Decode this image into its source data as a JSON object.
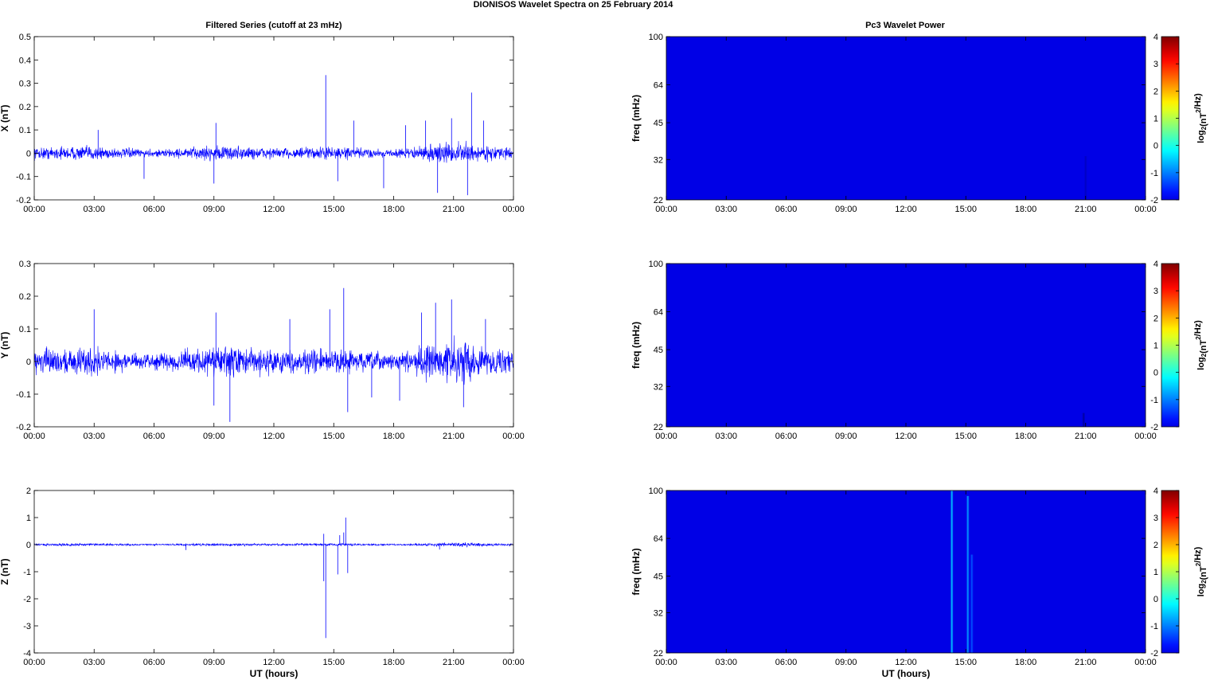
{
  "figure": {
    "title": "DIONISOS Wavelet Spectra on 25 February  2014",
    "left_column_title": "Filtered Series (cutoff at 23 mHz)",
    "right_column_title": "Pc3 Wavelet Power"
  },
  "colors": {
    "series_line": "#0000ff",
    "spectrum_background": "#00008f",
    "axes": "#000000"
  },
  "chart_data": [
    {
      "type": "line",
      "title": "Filtered Series (cutoff at 23 mHz)",
      "xlabel": "",
      "ylabel": "X (nT)",
      "x_ticks": [
        "00:00",
        "03:00",
        "06:00",
        "09:00",
        "12:00",
        "15:00",
        "18:00",
        "21:00",
        "00:00"
      ],
      "xlim_hours": [
        0,
        24
      ],
      "ylim": [
        -0.2,
        0.5
      ],
      "y_ticks": [
        -0.2,
        -0.1,
        0,
        0.1,
        0.2,
        0.3,
        0.4,
        0.5
      ],
      "noise_band_nT": 0.035,
      "spikes": [
        {
          "x_hours": 14.6,
          "y": 0.335
        },
        {
          "x_hours": 21.9,
          "y": 0.26
        },
        {
          "x_hours": 21.7,
          "y": -0.18
        },
        {
          "x_hours": 20.2,
          "y": -0.17
        },
        {
          "x_hours": 19.6,
          "y": 0.14
        },
        {
          "x_hours": 17.5,
          "y": -0.15
        },
        {
          "x_hours": 15.2,
          "y": -0.12
        },
        {
          "x_hours": 9.0,
          "y": -0.13
        },
        {
          "x_hours": 9.1,
          "y": 0.13
        },
        {
          "x_hours": 16.0,
          "y": 0.14
        },
        {
          "x_hours": 20.9,
          "y": 0.15
        },
        {
          "x_hours": 22.5,
          "y": 0.14
        },
        {
          "x_hours": 3.2,
          "y": 0.1
        },
        {
          "x_hours": 5.5,
          "y": -0.11
        },
        {
          "x_hours": 18.6,
          "y": 0.12
        }
      ]
    },
    {
      "type": "line",
      "title": "",
      "xlabel": "",
      "ylabel": "Y (nT)",
      "x_ticks": [
        "00:00",
        "03:00",
        "06:00",
        "09:00",
        "12:00",
        "15:00",
        "18:00",
        "21:00",
        "00:00"
      ],
      "xlim_hours": [
        0,
        24
      ],
      "ylim": [
        -0.2,
        0.3
      ],
      "y_ticks": [
        -0.2,
        -0.1,
        0,
        0.1,
        0.2,
        0.3
      ],
      "noise_band_nT": 0.05,
      "spikes": [
        {
          "x_hours": 15.5,
          "y": 0.225
        },
        {
          "x_hours": 9.8,
          "y": -0.185
        },
        {
          "x_hours": 9.0,
          "y": -0.135
        },
        {
          "x_hours": 15.7,
          "y": -0.155
        },
        {
          "x_hours": 20.9,
          "y": 0.19
        },
        {
          "x_hours": 20.1,
          "y": 0.18
        },
        {
          "x_hours": 21.5,
          "y": -0.14
        },
        {
          "x_hours": 3.0,
          "y": 0.16
        },
        {
          "x_hours": 14.8,
          "y": 0.16
        },
        {
          "x_hours": 16.9,
          "y": -0.11
        },
        {
          "x_hours": 22.6,
          "y": 0.13
        },
        {
          "x_hours": 19.4,
          "y": 0.15
        },
        {
          "x_hours": 9.1,
          "y": 0.15
        },
        {
          "x_hours": 12.8,
          "y": 0.13
        },
        {
          "x_hours": 18.3,
          "y": -0.12
        }
      ]
    },
    {
      "type": "line",
      "title": "",
      "xlabel": "UT (hours)",
      "ylabel": "Z (nT)",
      "x_ticks": [
        "00:00",
        "03:00",
        "06:00",
        "09:00",
        "12:00",
        "15:00",
        "18:00",
        "21:00",
        "00:00"
      ],
      "xlim_hours": [
        0,
        24
      ],
      "ylim": [
        -4,
        2
      ],
      "y_ticks": [
        -4,
        -3,
        -2,
        -1,
        0,
        1,
        2
      ],
      "noise_band_nT": 0.06,
      "spikes": [
        {
          "x_hours": 14.6,
          "y": -3.45
        },
        {
          "x_hours": 14.5,
          "y": -1.35
        },
        {
          "x_hours": 15.6,
          "y": 1.0
        },
        {
          "x_hours": 15.5,
          "y": 0.45
        },
        {
          "x_hours": 15.2,
          "y": -1.1
        },
        {
          "x_hours": 15.3,
          "y": 0.35
        },
        {
          "x_hours": 15.7,
          "y": -1.05
        },
        {
          "x_hours": 14.5,
          "y": 0.4
        },
        {
          "x_hours": 20.3,
          "y": -0.18
        },
        {
          "x_hours": 7.6,
          "y": -0.2
        }
      ]
    },
    {
      "type": "heatmap",
      "title": "Pc3 Wavelet Power",
      "xlabel": "",
      "ylabel": "freq (mHz)",
      "x_ticks": [
        "00:00",
        "03:00",
        "06:00",
        "09:00",
        "12:00",
        "15:00",
        "18:00",
        "21:00",
        "00:00"
      ],
      "xlim_hours": [
        0,
        24
      ],
      "y_ticks": [
        22,
        32,
        45,
        64,
        100
      ],
      "ylim_mHz": [
        22,
        100
      ],
      "y_scale": "log",
      "colorbar_label": "log2(nT2/Hz)",
      "colorbar_ticks": [
        -2,
        -1,
        0,
        1,
        2,
        3,
        4
      ],
      "colorbar_range": [
        -2,
        4
      ],
      "background_value": -2,
      "features": [
        {
          "x_hours": 21.0,
          "f_low_mHz": 22,
          "f_high_mHz": 33,
          "value": -1.6
        }
      ]
    },
    {
      "type": "heatmap",
      "title": "",
      "xlabel": "",
      "ylabel": "freq (mHz)",
      "x_ticks": [
        "00:00",
        "03:00",
        "06:00",
        "09:00",
        "12:00",
        "15:00",
        "18:00",
        "21:00",
        "00:00"
      ],
      "xlim_hours": [
        0,
        24
      ],
      "y_ticks": [
        22,
        32,
        45,
        64,
        100
      ],
      "ylim_mHz": [
        22,
        100
      ],
      "y_scale": "log",
      "colorbar_label": "log2(nT2/Hz)",
      "colorbar_ticks": [
        -2,
        -1,
        0,
        1,
        2,
        3,
        4
      ],
      "colorbar_range": [
        -2,
        4
      ],
      "background_value": -2,
      "features": [
        {
          "x_hours": 20.9,
          "f_low_mHz": 22,
          "f_high_mHz": 25,
          "value": -1.8
        }
      ]
    },
    {
      "type": "heatmap",
      "title": "",
      "xlabel": "UT (hours)",
      "ylabel": "freq (mHz)",
      "x_ticks": [
        "00:00",
        "03:00",
        "06:00",
        "09:00",
        "12:00",
        "15:00",
        "18:00",
        "21:00",
        "00:00"
      ],
      "xlim_hours": [
        0,
        24
      ],
      "y_ticks": [
        22,
        32,
        45,
        64,
        100
      ],
      "ylim_mHz": [
        22,
        100
      ],
      "y_scale": "log",
      "colorbar_label": "log2(nT2/Hz)",
      "colorbar_ticks": [
        -2,
        -1,
        0,
        1,
        2,
        3,
        4
      ],
      "colorbar_range": [
        -2,
        4
      ],
      "background_value": -2,
      "features": [
        {
          "x_hours": 14.3,
          "f_low_mHz": 22,
          "f_high_mHz": 100,
          "value": -0.2
        },
        {
          "x_hours": 15.1,
          "f_low_mHz": 22,
          "f_high_mHz": 95,
          "value": -0.4
        },
        {
          "x_hours": 15.3,
          "f_low_mHz": 22,
          "f_high_mHz": 55,
          "value": -0.8
        }
      ]
    }
  ]
}
